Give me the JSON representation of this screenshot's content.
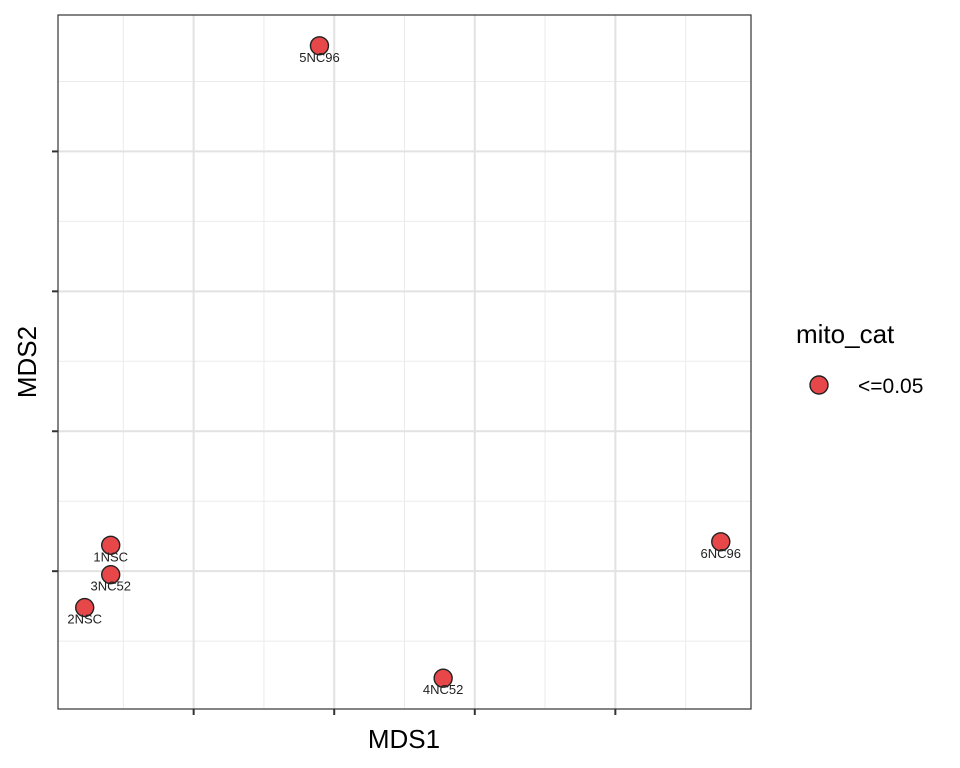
{
  "chart_data": {
    "type": "scatter",
    "xlabel": "MDS1",
    "ylabel": "MDS2",
    "grid": true,
    "x_ticks_major": [
      2,
      4,
      6,
      8
    ],
    "x_ticks_minor": [
      1,
      3,
      5,
      7,
      9
    ],
    "y_ticks_major": [
      -2,
      0,
      2,
      4
    ],
    "y_ticks_minor": [
      -3,
      -1,
      1,
      3,
      5
    ],
    "xlim": [
      0.07,
      9.93
    ],
    "ylim": [
      -3.97,
      5.95
    ],
    "tick_labels_shown": false,
    "points": [
      {
        "label": "5NC96",
        "x": 3.79,
        "y": 5.51,
        "category": "<=0.05"
      },
      {
        "label": "1NSC",
        "x": 0.82,
        "y": -1.63,
        "category": "<=0.05"
      },
      {
        "label": "3NC52",
        "x": 0.82,
        "y": -2.05,
        "category": "<=0.05"
      },
      {
        "label": "2NSC",
        "x": 0.45,
        "y": -2.52,
        "category": "<=0.05"
      },
      {
        "label": "6NC96",
        "x": 9.5,
        "y": -1.58,
        "category": "<=0.05"
      },
      {
        "label": "4NC52",
        "x": 5.55,
        "y": -3.53,
        "category": "<=0.05"
      }
    ],
    "point_color": "#e8474a",
    "point_stroke": "#222222",
    "legend": {
      "title": "mito_cat",
      "position": "right",
      "entries": [
        {
          "label": "<=0.05",
          "color": "#e8474a"
        }
      ]
    }
  }
}
